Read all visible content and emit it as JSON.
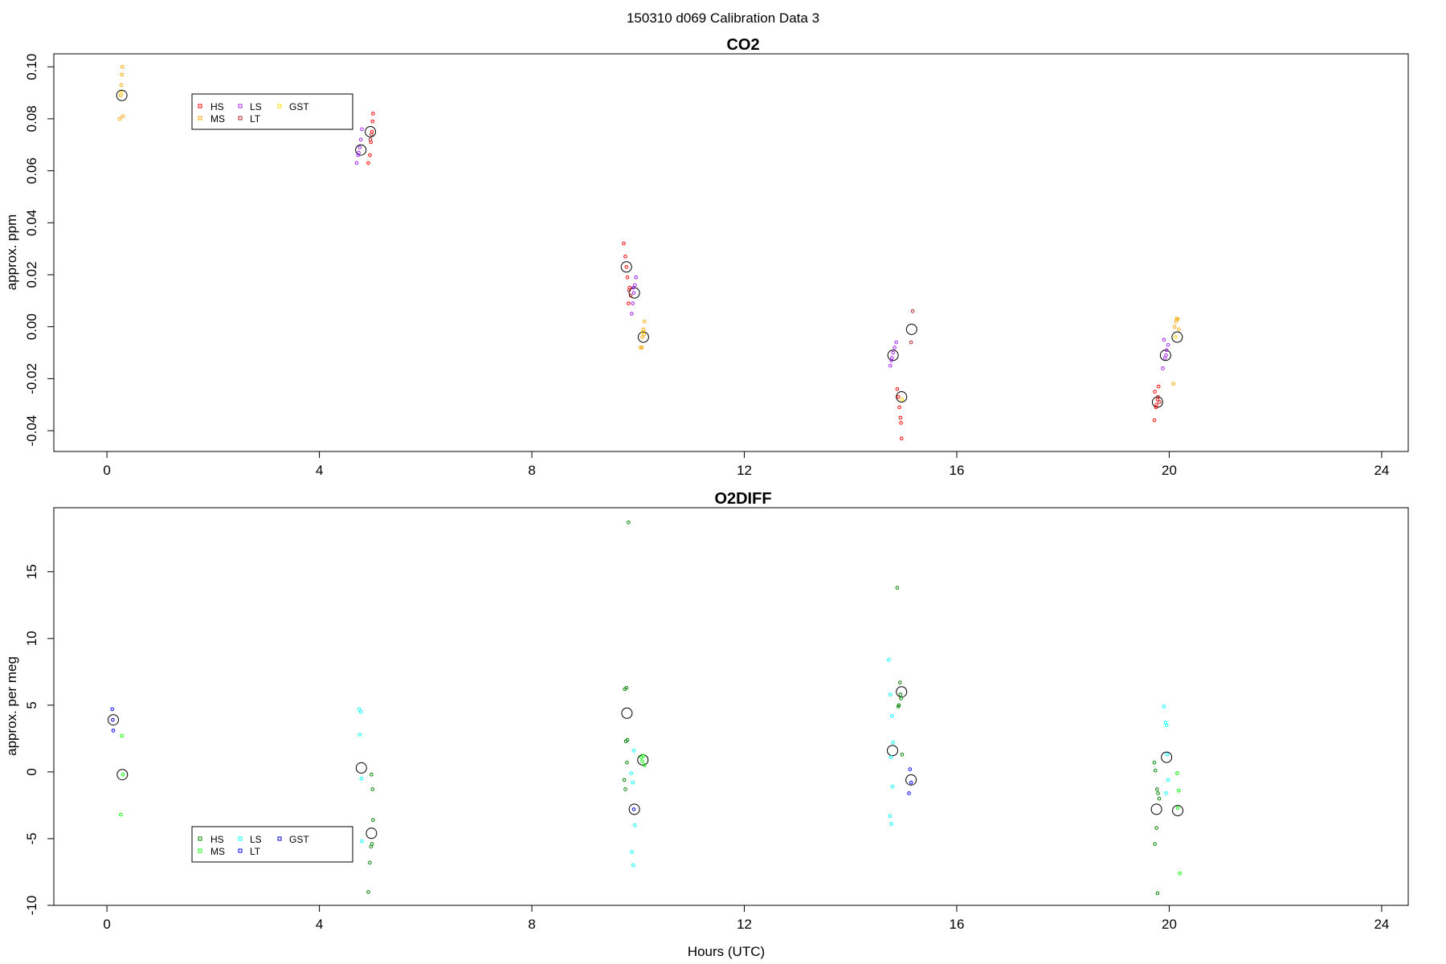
{
  "figure": {
    "title": "150310   d069   Calibration Data 3"
  },
  "chart_data": [
    {
      "type": "scatter",
      "title": "CO2",
      "xlabel": "",
      "ylabel": "approx. ppm",
      "xlim": [
        -1,
        24.5
      ],
      "ylim": [
        -0.048,
        0.105
      ],
      "xticks": [
        0,
        4,
        8,
        12,
        16,
        20,
        24
      ],
      "yticks": [
        -0.04,
        -0.02,
        0.0,
        0.02,
        0.04,
        0.06,
        0.08,
        0.1
      ],
      "ytick_labels": [
        "-0.04",
        "-0.02",
        "0.00",
        "0.02",
        "0.04",
        "0.06",
        "0.08",
        "0.10"
      ],
      "legend": {
        "position": "top-left",
        "entries": [
          {
            "label": "HS",
            "color": "#ff0000"
          },
          {
            "label": "MS",
            "color": "#ffa500"
          },
          {
            "label": "LS",
            "color": "#a020f0"
          },
          {
            "label": "LT",
            "color": "#b22222"
          },
          {
            "label": "GST",
            "color": "#ffd700"
          }
        ]
      },
      "series": [
        {
          "name": "HS",
          "color": "#ff0000",
          "points": [
            [
              4.92,
              0.063
            ],
            [
              4.95,
              0.066
            ],
            [
              4.97,
              0.071
            ],
            [
              4.99,
              0.075
            ],
            [
              5.0,
              0.079
            ],
            [
              5.01,
              0.082
            ],
            [
              9.73,
              0.032
            ],
            [
              9.76,
              0.027
            ],
            [
              9.78,
              0.023
            ],
            [
              9.8,
              0.019
            ],
            [
              9.82,
              0.009
            ],
            [
              9.84,
              0.015
            ],
            [
              14.88,
              -0.024
            ],
            [
              14.9,
              -0.027
            ],
            [
              14.92,
              -0.031
            ],
            [
              14.94,
              -0.035
            ],
            [
              14.95,
              -0.037
            ],
            [
              14.96,
              -0.043
            ],
            [
              19.73,
              -0.025
            ],
            [
              19.76,
              -0.03
            ],
            [
              19.78,
              -0.028
            ],
            [
              19.8,
              -0.023
            ],
            [
              19.72,
              -0.036
            ],
            [
              19.75,
              -0.031
            ]
          ]
        },
        {
          "name": "MS",
          "color": "#ffa500",
          "points": [
            [
              0.24,
              0.08
            ],
            [
              0.26,
              0.089
            ],
            [
              0.27,
              0.093
            ],
            [
              0.28,
              0.097
            ],
            [
              0.29,
              0.1
            ],
            [
              0.3,
              0.081
            ],
            [
              10.05,
              -0.008
            ],
            [
              10.08,
              -0.004
            ],
            [
              10.1,
              -0.001
            ],
            [
              10.12,
              0.002
            ],
            [
              10.07,
              -0.008
            ],
            [
              10.11,
              -0.003
            ],
            [
              20.1,
              0.0
            ],
            [
              20.13,
              0.002
            ],
            [
              20.16,
              0.003
            ],
            [
              20.18,
              -0.001
            ],
            [
              20.08,
              -0.022
            ],
            [
              20.14,
              0.003
            ]
          ]
        },
        {
          "name": "LS",
          "color": "#a020f0",
          "points": [
            [
              4.7,
              0.063
            ],
            [
              4.73,
              0.066
            ],
            [
              4.76,
              0.069
            ],
            [
              4.78,
              0.072
            ],
            [
              4.8,
              0.076
            ],
            [
              4.74,
              0.067
            ],
            [
              9.88,
              0.005
            ],
            [
              9.9,
              0.009
            ],
            [
              9.92,
              0.013
            ],
            [
              9.94,
              0.016
            ],
            [
              9.96,
              0.019
            ],
            [
              9.91,
              0.015
            ],
            [
              14.75,
              -0.015
            ],
            [
              14.78,
              -0.012
            ],
            [
              14.8,
              -0.01
            ],
            [
              14.83,
              -0.008
            ],
            [
              14.86,
              -0.006
            ],
            [
              14.77,
              -0.013
            ],
            [
              19.88,
              -0.016
            ],
            [
              19.92,
              -0.012
            ],
            [
              19.95,
              -0.009
            ],
            [
              19.98,
              -0.007
            ],
            [
              19.9,
              -0.005
            ],
            [
              19.94,
              -0.011
            ]
          ]
        },
        {
          "name": "LT",
          "color": "#b22222",
          "points": [
            [
              4.96,
              0.072
            ],
            [
              4.98,
              0.074
            ],
            [
              9.83,
              0.014
            ],
            [
              9.86,
              0.012
            ],
            [
              15.14,
              -0.006
            ],
            [
              15.17,
              0.006
            ],
            [
              19.79,
              -0.027
            ],
            [
              19.82,
              -0.029
            ]
          ]
        },
        {
          "name": "GST",
          "color": "#ffd700",
          "points": [
            [
              0.27,
              0.09
            ],
            [
              10.09,
              -0.002
            ],
            [
              20.12,
              -0.004
            ],
            [
              14.97,
              -0.028
            ]
          ]
        }
      ],
      "means": [
        [
          0.28,
          0.089
        ],
        [
          4.78,
          0.068
        ],
        [
          4.96,
          0.075
        ],
        [
          9.78,
          0.023
        ],
        [
          9.93,
          0.013
        ],
        [
          10.1,
          -0.004
        ],
        [
          14.8,
          -0.011
        ],
        [
          14.96,
          -0.027
        ],
        [
          15.15,
          -0.001
        ],
        [
          19.78,
          -0.029
        ],
        [
          19.93,
          -0.011
        ],
        [
          20.15,
          -0.004
        ]
      ]
    },
    {
      "type": "scatter",
      "title": "O2DIFF",
      "xlabel": "Hours (UTC)",
      "ylabel": "approx. per meg",
      "xlim": [
        -1,
        24.5
      ],
      "ylim": [
        -10,
        19.8
      ],
      "xticks": [
        0,
        4,
        8,
        12,
        16,
        20,
        24
      ],
      "yticks": [
        -10,
        -5,
        0,
        5,
        10,
        15
      ],
      "ytick_labels": [
        "-10",
        "-5",
        "0",
        "5",
        "10",
        "15"
      ],
      "legend": {
        "position": "bottom-left",
        "entries": [
          {
            "label": "HS",
            "color": "#008000"
          },
          {
            "label": "MS",
            "color": "#00ff00"
          },
          {
            "label": "LS",
            "color": "#00ffff"
          },
          {
            "label": "LT",
            "color": "#0000ff"
          },
          {
            "label": "GST",
            "color": "#0000cd"
          }
        ]
      },
      "series": [
        {
          "name": "HS",
          "color": "#008000",
          "points": [
            [
              4.92,
              -9.0
            ],
            [
              4.95,
              -6.8
            ],
            [
              4.97,
              -5.6
            ],
            [
              4.99,
              -5.4
            ],
            [
              5.01,
              -3.6
            ],
            [
              5.0,
              -1.3
            ],
            [
              4.98,
              -0.2
            ],
            [
              9.75,
              6.2
            ],
            [
              9.78,
              6.3
            ],
            [
              9.8,
              2.4
            ],
            [
              9.77,
              2.3
            ],
            [
              9.79,
              0.7
            ],
            [
              9.74,
              -0.6
            ],
            [
              9.76,
              -1.3
            ],
            [
              9.82,
              18.7
            ],
            [
              14.88,
              13.8
            ],
            [
              14.93,
              6.7
            ],
            [
              14.95,
              5.5
            ],
            [
              14.91,
              5.0
            ],
            [
              14.9,
              4.9
            ],
            [
              14.94,
              5.8
            ],
            [
              14.97,
              1.3
            ],
            [
              19.72,
              0.7
            ],
            [
              19.74,
              0.1
            ],
            [
              19.77,
              -1.3
            ],
            [
              19.79,
              -1.6
            ],
            [
              19.81,
              -2.0
            ],
            [
              19.76,
              -4.2
            ],
            [
              19.73,
              -5.4
            ],
            [
              19.78,
              -9.1
            ]
          ]
        },
        {
          "name": "MS",
          "color": "#00ff00",
          "points": [
            [
              0.28,
              2.7
            ],
            [
              0.3,
              -0.2
            ],
            [
              0.26,
              -3.2
            ],
            [
              10.06,
              1.1
            ],
            [
              10.08,
              0.8
            ],
            [
              10.1,
              1.2
            ],
            [
              10.12,
              0.5
            ],
            [
              20.15,
              -0.1
            ],
            [
              20.18,
              -1.4
            ],
            [
              20.16,
              -2.7
            ],
            [
              20.2,
              -7.6
            ]
          ]
        },
        {
          "name": "LS",
          "color": "#00ffff",
          "points": [
            [
              4.75,
              4.7
            ],
            [
              4.78,
              4.5
            ],
            [
              4.76,
              2.8
            ],
            [
              4.79,
              -0.5
            ],
            [
              4.8,
              -5.2
            ],
            [
              9.87,
              -0.1
            ],
            [
              9.9,
              -0.8
            ],
            [
              9.92,
              1.6
            ],
            [
              9.94,
              -4.0
            ],
            [
              9.88,
              -6.0
            ],
            [
              9.91,
              -7.0
            ],
            [
              14.72,
              8.4
            ],
            [
              14.75,
              5.8
            ],
            [
              14.78,
              4.2
            ],
            [
              14.8,
              2.2
            ],
            [
              14.76,
              1.1
            ],
            [
              14.79,
              -1.1
            ],
            [
              14.74,
              -3.3
            ],
            [
              14.77,
              -3.9
            ],
            [
              19.9,
              4.9
            ],
            [
              19.93,
              3.7
            ],
            [
              19.95,
              3.5
            ],
            [
              19.96,
              1.3
            ],
            [
              19.98,
              -0.6
            ],
            [
              19.94,
              -1.6
            ]
          ]
        },
        {
          "name": "LT",
          "color": "#0000ff",
          "points": [
            [
              0.1,
              4.7
            ],
            [
              0.12,
              3.1
            ],
            [
              15.12,
              0.2
            ],
            [
              15.14,
              -0.8
            ],
            [
              15.1,
              -1.6
            ]
          ]
        },
        {
          "name": "GST",
          "color": "#0000cd",
          "points": [
            [
              0.11,
              3.9
            ],
            [
              9.92,
              -2.8
            ]
          ]
        }
      ],
      "means": [
        [
          0.12,
          3.9
        ],
        [
          0.29,
          -0.2
        ],
        [
          4.79,
          0.3
        ],
        [
          4.98,
          -4.6
        ],
        [
          9.79,
          4.4
        ],
        [
          9.93,
          -2.8
        ],
        [
          10.09,
          0.9
        ],
        [
          14.79,
          1.6
        ],
        [
          14.96,
          6.0
        ],
        [
          15.14,
          -0.6
        ],
        [
          19.76,
          -2.8
        ],
        [
          19.95,
          1.1
        ],
        [
          20.16,
          -2.9
        ]
      ]
    }
  ]
}
